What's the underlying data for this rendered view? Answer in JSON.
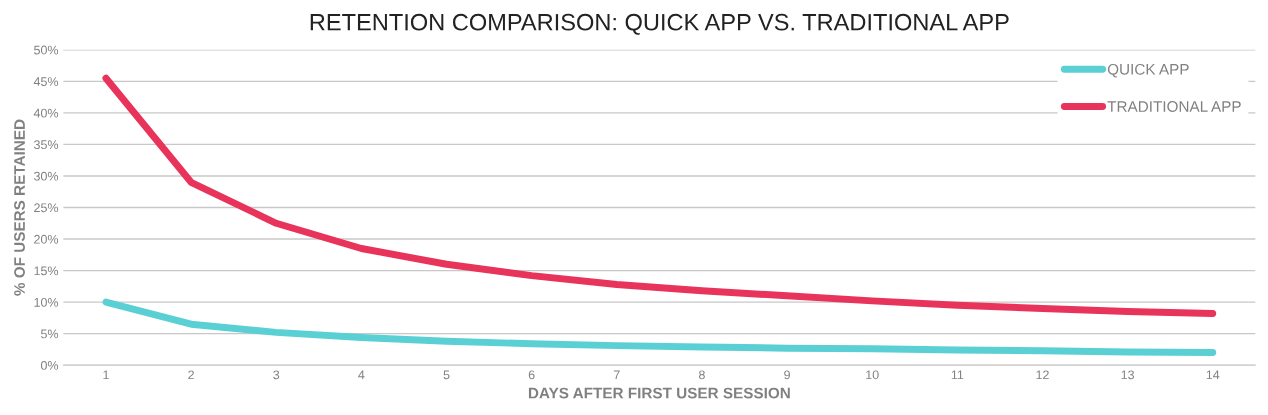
{
  "chart_data": {
    "type": "line",
    "title": "RETENTION COMPARISON: QUICK APP VS. TRADITIONAL APP",
    "xlabel": "DAYS AFTER FIRST USER SESSION",
    "ylabel": "% OF USERS RETAINED",
    "categories": [
      "1",
      "2",
      "3",
      "4",
      "5",
      "6",
      "7",
      "8",
      "9",
      "10",
      "11",
      "12",
      "13",
      "14"
    ],
    "series": [
      {
        "name": "QUICK APP",
        "color": "#5bd0d4",
        "values": [
          10,
          6.5,
          5.2,
          4.4,
          3.8,
          3.4,
          3.1,
          2.9,
          2.7,
          2.6,
          2.4,
          2.3,
          2.1,
          2.0
        ]
      },
      {
        "name": "TRADITIONAL APP",
        "color": "#e8345a",
        "values": [
          45.5,
          29,
          22.5,
          18.5,
          16,
          14.2,
          12.8,
          11.8,
          11,
          10.2,
          9.5,
          9,
          8.5,
          8.2
        ]
      }
    ],
    "ylim": [
      0,
      50
    ],
    "yticks": [
      {
        "value": 0,
        "label": "0%"
      },
      {
        "value": 5,
        "label": "5%"
      },
      {
        "value": 10,
        "label": "10%"
      },
      {
        "value": 15,
        "label": "15%"
      },
      {
        "value": 20,
        "label": "20%"
      },
      {
        "value": 25,
        "label": "25%"
      },
      {
        "value": 30,
        "label": "30%"
      },
      {
        "value": 35,
        "label": "35%"
      },
      {
        "value": 40,
        "label": "40%"
      },
      {
        "value": 45,
        "label": "45%"
      },
      {
        "value": 50,
        "label": "50%"
      }
    ],
    "grid": "y",
    "legend": "top right",
    "marker": "none",
    "line_style": "solid"
  }
}
